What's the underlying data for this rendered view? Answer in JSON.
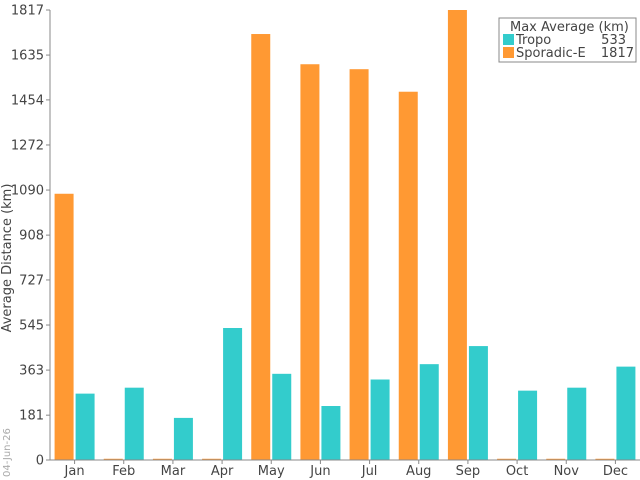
{
  "chart_data": {
    "type": "bar",
    "ylabel": "Average Distance (km)",
    "xlabel": "",
    "ylim": [
      0,
      1817
    ],
    "yticks": [
      0,
      181,
      363,
      545,
      727,
      908,
      1090,
      1272,
      1454,
      1635,
      1817
    ],
    "categories": [
      "Jan",
      "Feb",
      "Mar",
      "Apr",
      "May",
      "Jun",
      "Jul",
      "Aug",
      "Sep",
      "Oct",
      "Nov",
      "Dec"
    ],
    "series": [
      {
        "name": "Sporadic-E",
        "color": "#ff9933",
        "values": [
          1075,
          5,
          5,
          5,
          1720,
          1598,
          1578,
          1487,
          1817,
          5,
          5,
          5
        ]
      },
      {
        "name": "Tropo",
        "color": "#33cccc",
        "values": [
          268,
          292,
          170,
          533,
          348,
          218,
          325,
          387,
          460,
          280,
          292,
          377
        ]
      }
    ],
    "legend": {
      "title": "Max Average (km)",
      "position": "top-right",
      "entries": [
        {
          "name": "Tropo",
          "value": "533",
          "color": "#33cccc"
        },
        {
          "name": "Sporadic-E",
          "value": "1817",
          "color": "#ff9933"
        }
      ]
    },
    "grid": false
  },
  "date_stamp": "04-Jun-26"
}
